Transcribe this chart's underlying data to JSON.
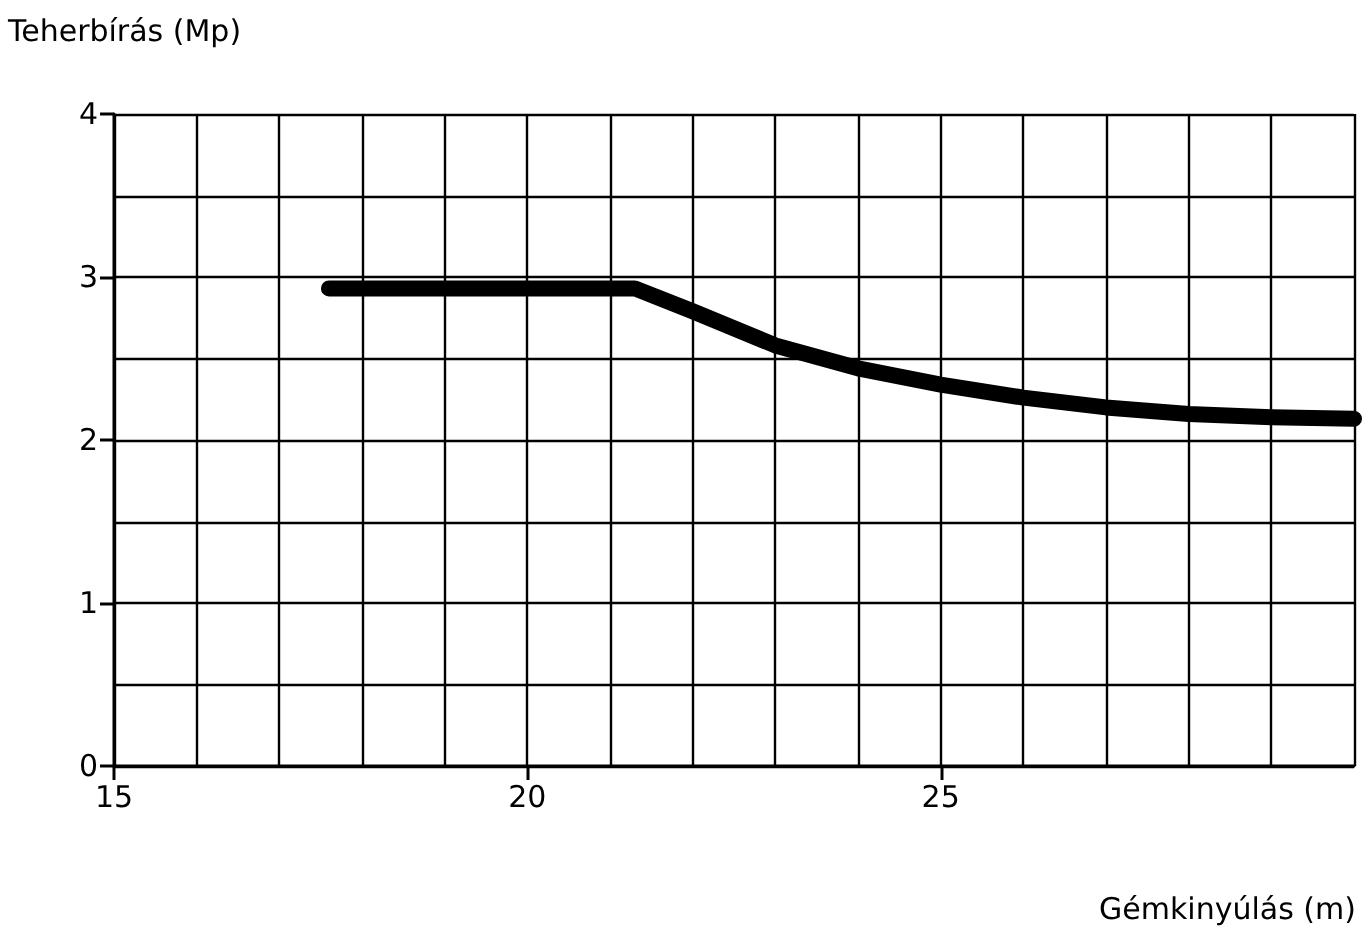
{
  "chart_data": {
    "type": "line",
    "xlabel": "Gémkinyúlás (m)",
    "ylabel": "Teherbírás (Mp)",
    "series": [
      {
        "color": "#000000",
        "x": [
          17.6,
          21.3,
          22,
          23,
          24,
          25,
          26,
          27,
          28,
          29,
          30
        ],
        "values": [
          2.93,
          2.93,
          2.79,
          2.58,
          2.44,
          2.34,
          2.26,
          2.2,
          2.16,
          2.14,
          2.13
        ]
      }
    ],
    "xlim": [
      15,
      30
    ],
    "xticks": [
      15,
      {
        "value": 16,
        "label": null
      },
      {
        "value": 17,
        "label": null
      },
      {
        "value": 18,
        "label": null
      },
      {
        "value": 19,
        "label": null
      },
      20,
      {
        "value": 21,
        "label": null
      },
      {
        "value": 22,
        "label": null
      },
      {
        "value": 23,
        "label": null
      },
      {
        "value": 24,
        "label": null
      },
      25,
      {
        "value": 26,
        "label": null
      },
      {
        "value": 27,
        "label": null
      },
      {
        "value": 28,
        "label": null
      },
      {
        "value": 29,
        "label": null
      },
      {
        "value": 30,
        "label": null
      }
    ],
    "ylim": [
      0,
      4
    ],
    "yticks": [
      0,
      {
        "value": 0.5,
        "label": null
      },
      1,
      {
        "value": 1.5,
        "label": null
      },
      2,
      {
        "value": 2.5,
        "label": null
      },
      3,
      {
        "value": 3.5,
        "label": null
      },
      4
    ],
    "grid": true,
    "marker": "none",
    "line_style": "solid"
  }
}
